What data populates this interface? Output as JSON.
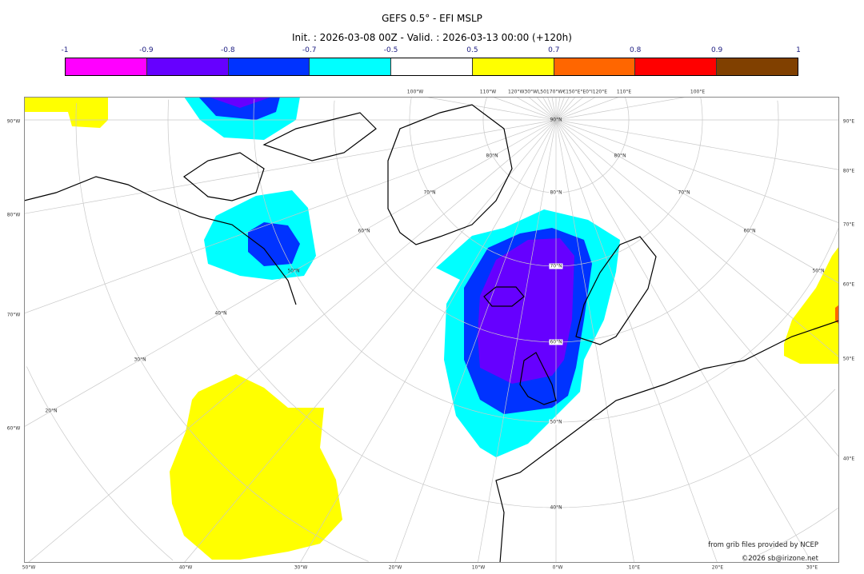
{
  "title": "GEFS 0.5° - EFI MSLP",
  "subtitle": "Init. : 2026-03-08 00Z - Valid. : 2026-03-13 00:00 (+120h)",
  "colorbar": {
    "ticks": [
      "-1",
      "-0.9",
      "-0.8",
      "-0.7",
      "-0.5",
      "0.5",
      "0.7",
      "0.8",
      "0.9",
      "1"
    ],
    "colors": [
      "#ff00ff",
      "#6600ff",
      "#0033ff",
      "#00ffff",
      "#ffffff",
      "#ffff00",
      "#ff6600",
      "#ff0000",
      "#804000"
    ]
  },
  "labels": {
    "left": [
      "90°W",
      "80°W",
      "70°W",
      "60°W"
    ],
    "right": [
      "90°E",
      "80°E",
      "70°E",
      "60°E",
      "50°E",
      "40°E"
    ],
    "bottom": [
      "50°W",
      "40°W",
      "30°W",
      "20°W",
      "10°W",
      "0°W",
      "10°E",
      "20°E",
      "30°E"
    ],
    "top": [
      "100°W",
      "110°W",
      "120°W30°WL50170°W€150°E°E0°I120°E",
      "110°E",
      "100°E"
    ],
    "meridian_lat": [
      "90°N",
      "80°N",
      "70°N",
      "60°N",
      "50°N",
      "40°N"
    ],
    "west_lat": [
      "80°N",
      "70°N",
      "60°N",
      "50°N",
      "40°N",
      "30°N",
      "20°N"
    ],
    "east_lat": [
      "80°N",
      "70°N",
      "60°N",
      "50°N"
    ]
  },
  "credits": {
    "line1": "from grib files provided by NCEP",
    "line2": "©2026 sb@irizone.net"
  }
}
